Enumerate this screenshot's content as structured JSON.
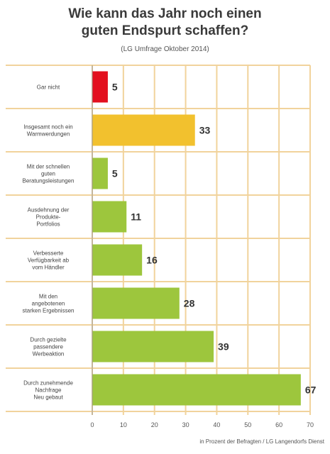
{
  "header": {
    "title_line1": "Wie kann das Jahr noch einen",
    "title_line2": "guten Endspurt schaffen?",
    "subtitle": "(LG Umfrage Oktober 2014)"
  },
  "footer": {
    "note": "in Prozent der Befragten / LG Langendorfs Dienst"
  },
  "colors": {
    "red": "#e3101e",
    "yellow": "#f2c12e",
    "green": "#9dc63d",
    "grid": "#f1d39c",
    "text": "#333333"
  },
  "chart_data": {
    "type": "bar",
    "orientation": "horizontal",
    "categories": [
      [
        "Gar nicht"
      ],
      [
        "Insgesamt noch ein",
        "Warmwerdungen"
      ],
      [
        "Mit der schnellen",
        "guten",
        "Beratungsleistungen"
      ],
      [
        "Ausdehnung der",
        "Produkte-",
        "Portfolios"
      ],
      [
        "Verbesserte",
        "Verfügbarkeit ab",
        "vom Händler"
      ],
      [
        "Mit den",
        "angebotenen",
        "starken Ergebnissen"
      ],
      [
        "Durch gezielte",
        "passendere",
        "Werbeaktion"
      ],
      [
        "Durch zunehmende",
        "Nachfrage",
        "Neu gebaut"
      ]
    ],
    "values": [
      5,
      33,
      5,
      11,
      16,
      28,
      39,
      67
    ],
    "colors": [
      "#e3101e",
      "#f2c12e",
      "#9dc63d",
      "#9dc63d",
      "#9dc63d",
      "#9dc63d",
      "#9dc63d",
      "#9dc63d"
    ],
    "xlim": [
      0,
      70
    ],
    "xticks": [
      0,
      10,
      20,
      30,
      40,
      50,
      60,
      70
    ],
    "grid": true
  }
}
